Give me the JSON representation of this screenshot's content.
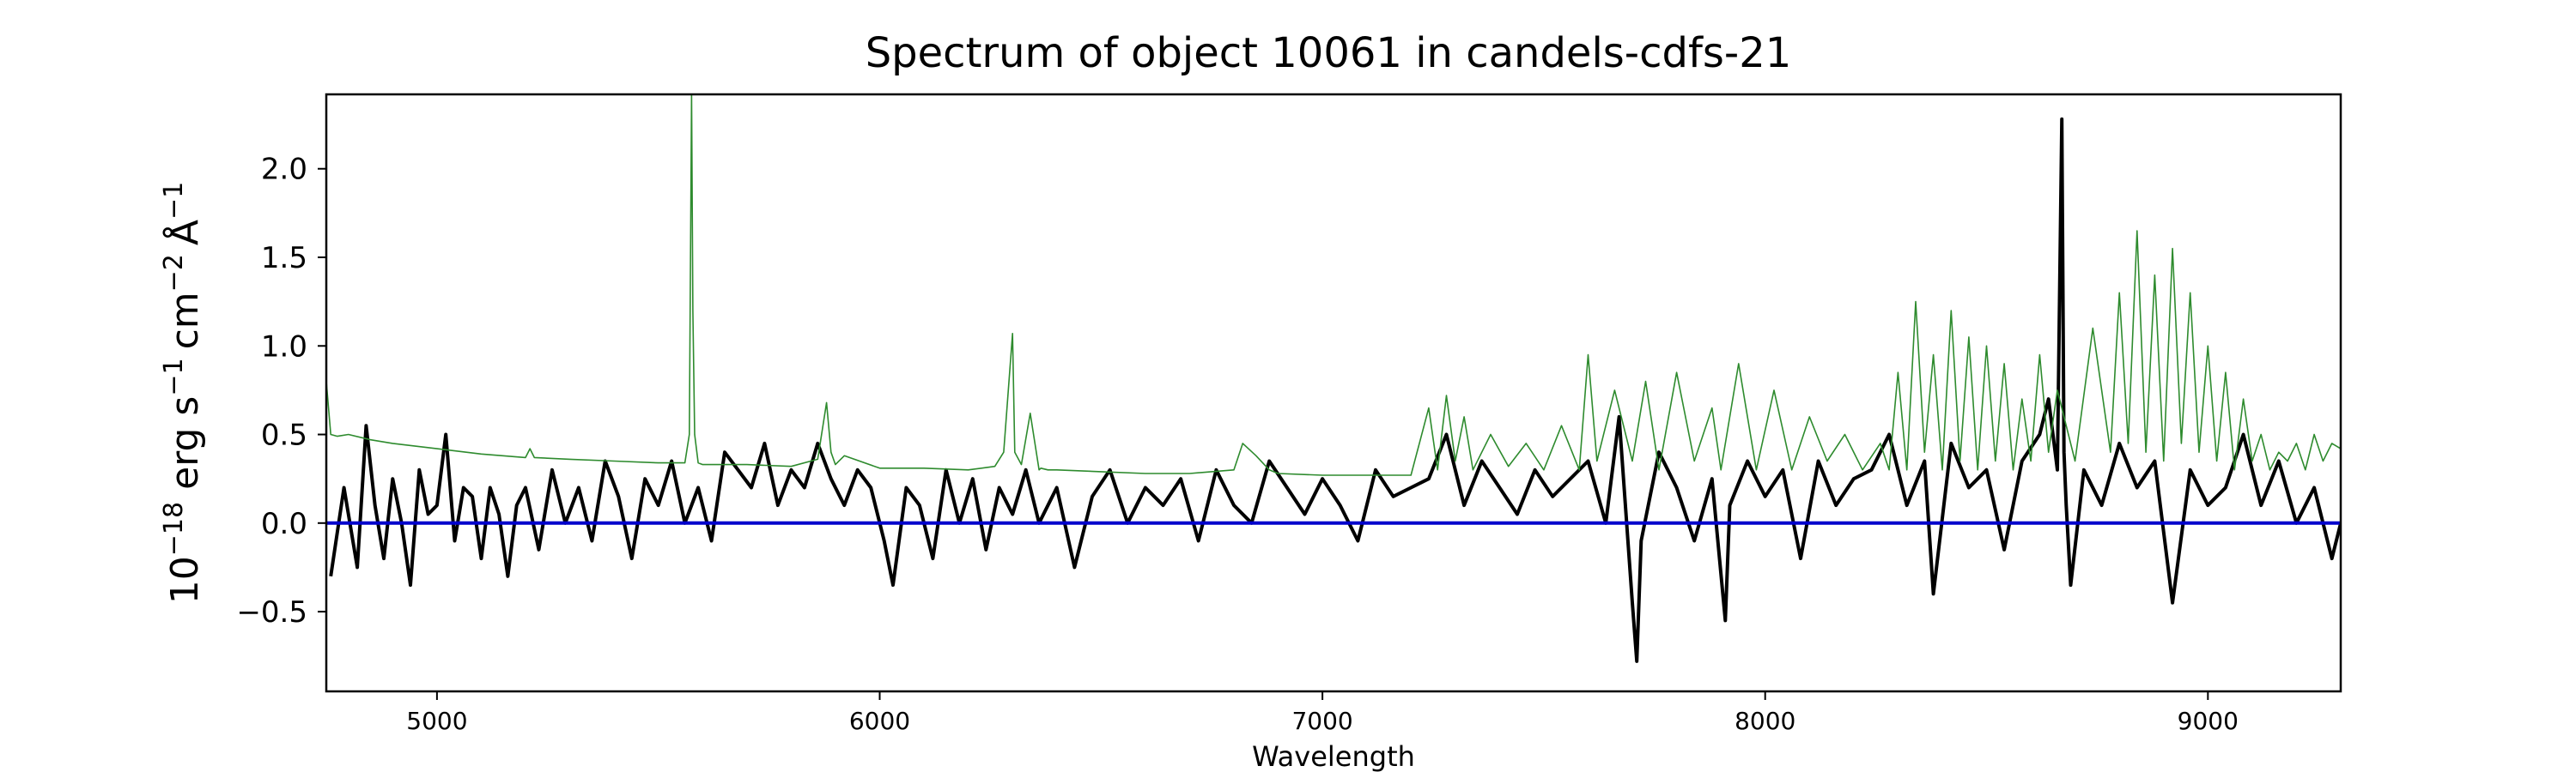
{
  "chart_data": {
    "type": "line",
    "title": "Spectrum of object 10061 in candels-cdfs-21",
    "xlabel": "Wavelength",
    "ylabel": {
      "unit_base": "10",
      "unit_base_exp": "−18",
      "erg": "erg",
      "s": "s",
      "s_exp": "−1",
      "cm": "cm",
      "cm_exp": "−2",
      "angstrom": "Å",
      "angstrom_exp": "−1"
    },
    "xlim": [
      4750,
      9300
    ],
    "ylim": [
      -0.95,
      2.42
    ],
    "x_ticks": [
      {
        "value": 5000,
        "label": "5000"
      },
      {
        "value": 6000,
        "label": "6000"
      },
      {
        "value": 7000,
        "label": "7000"
      },
      {
        "value": 8000,
        "label": "8000"
      },
      {
        "value": 9000,
        "label": "9000"
      }
    ],
    "y_ticks": [
      {
        "value": -0.5,
        "label": "−0.5"
      },
      {
        "value": 0.0,
        "label": "0.0"
      },
      {
        "value": 0.5,
        "label": "0.5"
      },
      {
        "value": 1.0,
        "label": "1.0"
      },
      {
        "value": 1.5,
        "label": "1.5"
      },
      {
        "value": 2.0,
        "label": "2.0"
      }
    ],
    "grid": false,
    "legend": "none",
    "colors": {
      "flux": "#000000",
      "error": "#2e8b2e",
      "zero": "#0000cc"
    },
    "series": [
      {
        "color": "#000000",
        "x": [
          4760,
          4790,
          4820,
          4840,
          4860,
          4880,
          4900,
          4920,
          4940,
          4960,
          4980,
          5000,
          5020,
          5040,
          5060,
          5080,
          5100,
          5120,
          5140,
          5160,
          5180,
          5200,
          5230,
          5260,
          5290,
          5320,
          5350,
          5380,
          5410,
          5440,
          5470,
          5500,
          5530,
          5560,
          5590,
          5620,
          5650,
          5680,
          5710,
          5740,
          5770,
          5800,
          5830,
          5860,
          5890,
          5920,
          5950,
          5980,
          6010,
          6030,
          6060,
          6090,
          6120,
          6150,
          6180,
          6210,
          6240,
          6270,
          6300,
          6330,
          6360,
          6400,
          6440,
          6480,
          6520,
          6560,
          6600,
          6640,
          6680,
          6720,
          6760,
          6800,
          6840,
          6880,
          6920,
          6960,
          7000,
          7040,
          7080,
          7120,
          7160,
          7200,
          7240,
          7280,
          7320,
          7360,
          7400,
          7440,
          7480,
          7520,
          7560,
          7600,
          7640,
          7670,
          7700,
          7710,
          7720,
          7760,
          7800,
          7840,
          7880,
          7910,
          7920,
          7960,
          8000,
          8040,
          8080,
          8120,
          8160,
          8200,
          8240,
          8280,
          8320,
          8360,
          8380,
          8420,
          8460,
          8500,
          8540,
          8580,
          8620,
          8640,
          8660,
          8670,
          8675,
          8680,
          8690,
          8720,
          8760,
          8800,
          8840,
          8880,
          8920,
          8960,
          9000,
          9040,
          9080,
          9120,
          9160,
          9200,
          9240,
          9280,
          9300
        ],
        "y": [
          -0.3,
          0.2,
          -0.25,
          0.55,
          0.1,
          -0.2,
          0.25,
          0.0,
          -0.35,
          0.3,
          0.05,
          0.1,
          0.5,
          -0.1,
          0.2,
          0.15,
          -0.2,
          0.2,
          0.05,
          -0.3,
          0.1,
          0.2,
          -0.15,
          0.3,
          0.0,
          0.2,
          -0.1,
          0.35,
          0.15,
          -0.2,
          0.25,
          0.1,
          0.35,
          0.0,
          0.2,
          -0.1,
          0.4,
          0.3,
          0.2,
          0.45,
          0.1,
          0.3,
          0.2,
          0.45,
          0.25,
          0.1,
          0.3,
          0.2,
          -0.1,
          -0.35,
          0.2,
          0.1,
          -0.2,
          0.3,
          0.0,
          0.25,
          -0.15,
          0.2,
          0.05,
          0.3,
          0.0,
          0.2,
          -0.25,
          0.15,
          0.3,
          0.0,
          0.2,
          0.1,
          0.25,
          -0.1,
          0.3,
          0.1,
          0.0,
          0.35,
          0.2,
          0.05,
          0.25,
          0.1,
          -0.1,
          0.3,
          0.15,
          0.2,
          0.25,
          0.5,
          0.1,
          0.35,
          0.2,
          0.05,
          0.3,
          0.15,
          0.25,
          0.35,
          0.0,
          0.6,
          -0.45,
          -0.78,
          -0.1,
          0.4,
          0.2,
          -0.1,
          0.25,
          -0.55,
          0.1,
          0.35,
          0.15,
          0.3,
          -0.2,
          0.35,
          0.1,
          0.25,
          0.3,
          0.5,
          0.1,
          0.35,
          -0.4,
          0.45,
          0.2,
          0.3,
          -0.15,
          0.35,
          0.5,
          0.7,
          0.3,
          2.28,
          0.4,
          0.1,
          -0.35,
          0.3,
          0.1,
          0.45,
          0.2,
          0.35,
          -0.45,
          0.3,
          0.1,
          0.2,
          0.5,
          0.1,
          0.35,
          0.0,
          0.2,
          -0.2,
          0.0
        ]
      },
      {
        "color": "#2e8b2e",
        "x": [
          4750,
          4760,
          4775,
          4800,
          4850,
          4900,
          5000,
          5100,
          5200,
          5210,
          5220,
          5300,
          5400,
          5500,
          5560,
          5570,
          5575,
          5578,
          5582,
          5590,
          5600,
          5700,
          5800,
          5860,
          5880,
          5890,
          5900,
          5920,
          6000,
          6100,
          6200,
          6260,
          6280,
          6300,
          6305,
          6320,
          6340,
          6360,
          6364,
          6380,
          6400,
          6500,
          6600,
          6700,
          6800,
          6820,
          6850,
          6880,
          6900,
          7000,
          7100,
          7200,
          7240,
          7260,
          7280,
          7300,
          7320,
          7340,
          7380,
          7420,
          7460,
          7500,
          7540,
          7580,
          7600,
          7620,
          7660,
          7700,
          7730,
          7760,
          7800,
          7840,
          7880,
          7900,
          7940,
          7980,
          8020,
          8060,
          8100,
          8140,
          8180,
          8220,
          8260,
          8280,
          8300,
          8320,
          8340,
          8360,
          8380,
          8400,
          8420,
          8440,
          8460,
          8480,
          8500,
          8520,
          8540,
          8560,
          8580,
          8600,
          8620,
          8640,
          8660,
          8700,
          8740,
          8780,
          8800,
          8820,
          8840,
          8860,
          8880,
          8900,
          8920,
          8940,
          8960,
          8980,
          9000,
          9020,
          9040,
          9060,
          9080,
          9100,
          9120,
          9140,
          9160,
          9180,
          9200,
          9220,
          9240,
          9260,
          9280,
          9300
        ],
        "y": [
          0.8,
          0.5,
          0.49,
          0.5,
          0.47,
          0.45,
          0.42,
          0.39,
          0.37,
          0.42,
          0.37,
          0.36,
          0.35,
          0.34,
          0.34,
          0.5,
          2.42,
          1.2,
          0.5,
          0.34,
          0.33,
          0.33,
          0.32,
          0.36,
          0.68,
          0.4,
          0.33,
          0.38,
          0.31,
          0.31,
          0.3,
          0.32,
          0.4,
          1.07,
          0.4,
          0.33,
          0.62,
          0.3,
          0.31,
          0.3,
          0.3,
          0.29,
          0.28,
          0.28,
          0.3,
          0.45,
          0.38,
          0.3,
          0.28,
          0.27,
          0.27,
          0.27,
          0.65,
          0.3,
          0.72,
          0.35,
          0.6,
          0.3,
          0.5,
          0.32,
          0.45,
          0.3,
          0.55,
          0.3,
          0.95,
          0.35,
          0.75,
          0.35,
          0.8,
          0.3,
          0.85,
          0.35,
          0.65,
          0.3,
          0.9,
          0.3,
          0.75,
          0.3,
          0.6,
          0.35,
          0.5,
          0.3,
          0.45,
          0.3,
          0.85,
          0.3,
          1.25,
          0.4,
          0.95,
          0.3,
          1.2,
          0.35,
          1.05,
          0.3,
          1.0,
          0.35,
          0.9,
          0.3,
          0.7,
          0.35,
          0.95,
          0.4,
          0.75,
          0.35,
          1.1,
          0.4,
          1.3,
          0.45,
          1.65,
          0.4,
          1.4,
          0.35,
          1.55,
          0.45,
          1.3,
          0.4,
          1.0,
          0.35,
          0.85,
          0.3,
          0.7,
          0.35,
          0.5,
          0.3,
          0.4,
          0.35,
          0.45,
          0.3,
          0.5,
          0.35,
          0.45,
          0.42
        ]
      },
      {
        "color": "#0000cc",
        "x": [
          4750,
          9300
        ],
        "y": [
          0.0,
          0.0
        ]
      }
    ]
  }
}
